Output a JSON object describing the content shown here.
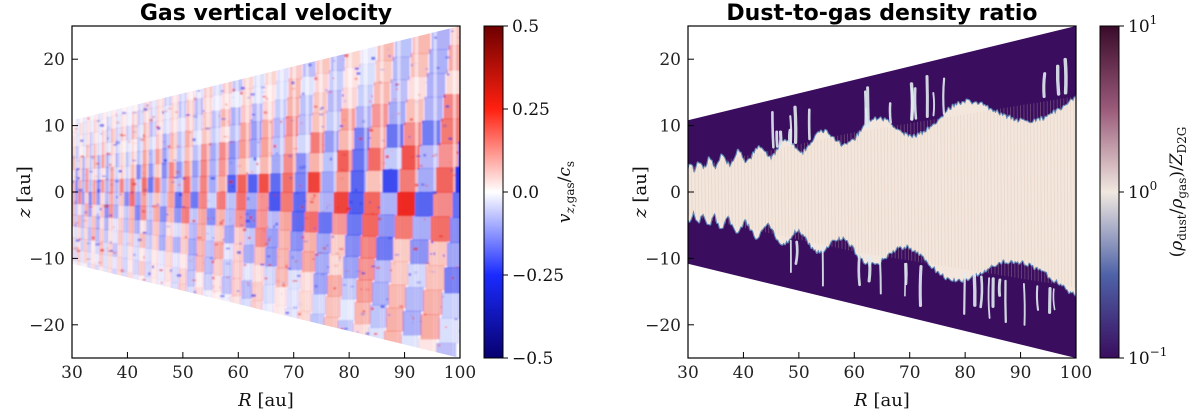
{
  "chart_data": [
    {
      "type": "heatmap",
      "title": "Gas vertical velocity",
      "xlabel": "R [au]",
      "ylabel": "z [au]",
      "xlim": [
        30,
        100
      ],
      "ylim": [
        -25,
        25
      ],
      "xticks": [
        "30",
        "40",
        "50",
        "60",
        "70",
        "80",
        "90",
        "100"
      ],
      "yticks": [
        "20",
        "10",
        "0",
        "−10",
        "−20"
      ],
      "colorbar": {
        "label": "v_z,gas / c_s",
        "scale": "linear",
        "range": [
          -0.5,
          0.5
        ],
        "ticks": [
          "0.5",
          "0.25",
          "0.0",
          "−0.25",
          "−0.5"
        ],
        "colors": [
          "#08006e",
          "#1a2bff",
          "#ffffff",
          "#ff2010",
          "#6e0000"
        ]
      },
      "domain_edge": {
        "R": [
          30,
          100
        ],
        "z_upper": [
          10.8,
          25.0
        ]
      },
      "pattern": "alternating vertical bands of positive and negative velocity, widening with R"
    },
    {
      "type": "heatmap",
      "title": "Dust-to-gas density ratio",
      "xlabel": "R [au]",
      "ylabel": "z [au]",
      "xlim": [
        30,
        100
      ],
      "ylim": [
        -25,
        25
      ],
      "xticks": [
        "30",
        "40",
        "50",
        "60",
        "70",
        "80",
        "90",
        "100"
      ],
      "yticks": [
        "20",
        "10",
        "0",
        "−10",
        "−20"
      ],
      "colorbar": {
        "label": "(ρ_dust / ρ_gas) / Z_D2G",
        "scale": "log",
        "range": [
          0.1,
          10
        ],
        "ticks": [
          "10^1",
          "10^0",
          "10^−1"
        ],
        "colors": [
          "#3a0d5e",
          "#4e62a8",
          "#f0e8e0",
          "#9a5a7a",
          "#3a0a2a"
        ]
      },
      "domain_edge": {
        "R": [
          30,
          100
        ],
        "z_upper": [
          10.8,
          25.0
        ]
      },
      "background_color": "#3a0d5e",
      "dust_layer_color": "#f3e6dc",
      "dust_layer_halfwidth": {
        "R": [
          30,
          60,
          100
        ],
        "z": [
          4,
          10,
          16
        ]
      }
    }
  ]
}
